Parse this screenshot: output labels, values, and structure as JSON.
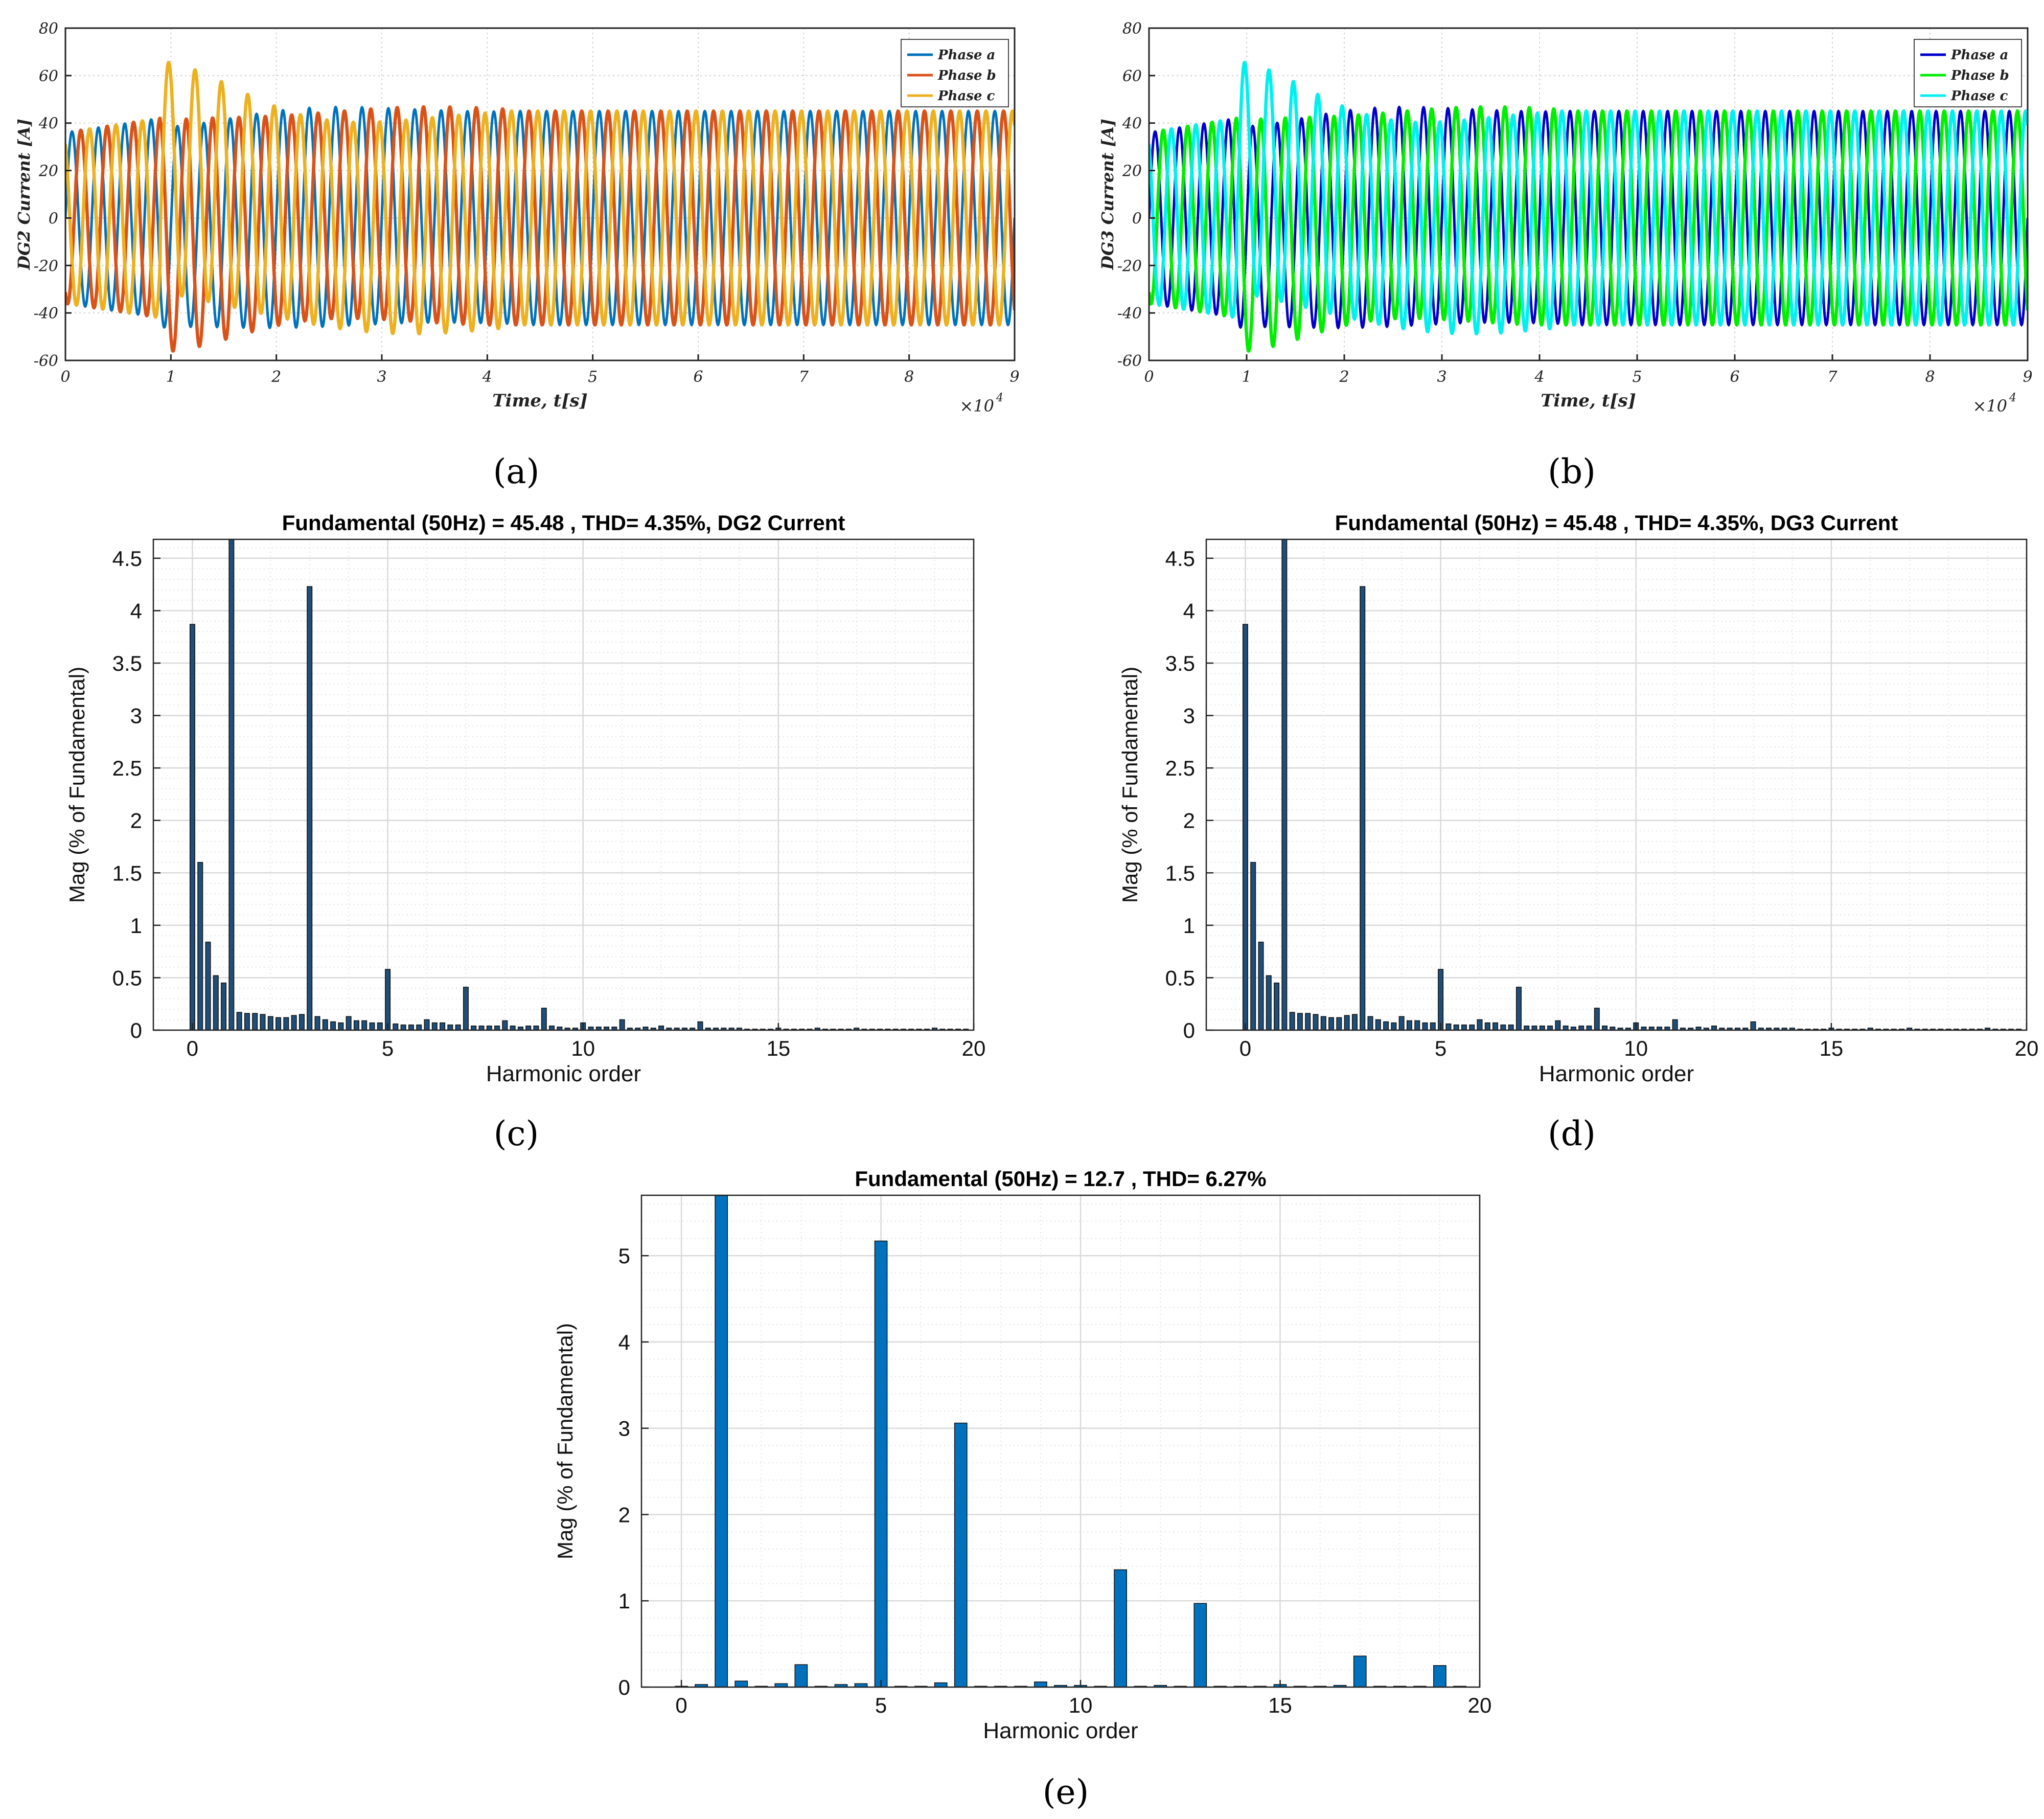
{
  "colors": {
    "phase_a_a": "#0072BD",
    "phase_b_a": "#D95319",
    "phase_c_a": "#EDB120",
    "phase_a_b": "#0000CC",
    "phase_b_b": "#00EE00",
    "phase_c_b": "#00F0F0",
    "bar_dark": "#1F4E79",
    "bar_bright": "#0072BD",
    "grid": "#d9d9d9"
  },
  "panels": {
    "a": {
      "label": "(a)"
    },
    "b": {
      "label": "(b)"
    },
    "c": {
      "label": "(c)"
    },
    "d": {
      "label": "(d)"
    },
    "e": {
      "label": "(e)"
    }
  },
  "chart_data": [
    {
      "id": "a",
      "type": "line",
      "title": "",
      "xlabel": "Time, t[s]",
      "ylabel": "DG2 Current [A]",
      "x_multiplier": "×10",
      "x_exponent": "4",
      "xlim": [
        0,
        9
      ],
      "ylim": [
        -60,
        80
      ],
      "xticks": [
        0,
        1,
        2,
        3,
        4,
        5,
        6,
        7,
        8,
        9
      ],
      "yticks": [
        -60,
        -40,
        -20,
        0,
        20,
        40,
        60,
        80
      ],
      "series": [
        {
          "name": "Phase a",
          "color_key": "phase_a_a",
          "phase_deg": 0,
          "steady_amplitude": 45
        },
        {
          "name": "Phase b",
          "color_key": "phase_b_a",
          "phase_deg": -120,
          "steady_amplitude": 45
        },
        {
          "name": "Phase c",
          "color_key": "phase_c_a",
          "phase_deg": 120,
          "steady_amplitude": 45
        }
      ],
      "cycles_per_unit": 4.0,
      "transient_peak": 62,
      "legend": "top-right"
    },
    {
      "id": "b",
      "type": "line",
      "title": "",
      "xlabel": "Time, t[s]",
      "ylabel": "DG3 Current [A]",
      "x_multiplier": "×10",
      "x_exponent": "4",
      "xlim": [
        0,
        9
      ],
      "ylim": [
        -60,
        80
      ],
      "xticks": [
        0,
        1,
        2,
        3,
        4,
        5,
        6,
        7,
        8,
        9
      ],
      "yticks": [
        -60,
        -40,
        -20,
        0,
        20,
        40,
        60,
        80
      ],
      "series": [
        {
          "name": "Phase a",
          "color_key": "phase_a_b",
          "phase_deg": 0,
          "steady_amplitude": 45
        },
        {
          "name": "Phase b",
          "color_key": "phase_b_b",
          "phase_deg": -120,
          "steady_amplitude": 45
        },
        {
          "name": "Phase c",
          "color_key": "phase_c_b",
          "phase_deg": 120,
          "steady_amplitude": 45
        }
      ],
      "cycles_per_unit": 4.0,
      "transient_peak": 62,
      "legend": "top-right"
    },
    {
      "id": "c",
      "type": "bar",
      "title": "Fundamental (50Hz) = 45.48 , THD= 4.35%, DG2 Current",
      "xlabel": "Harmonic order",
      "ylabel": "Mag (% of Fundamental)",
      "xlim": [
        -1,
        20
      ],
      "ylim": [
        0,
        4.68
      ],
      "xticks": [
        0,
        5,
        10,
        15,
        20
      ],
      "yticks": [
        0,
        0.5,
        1,
        1.5,
        2,
        2.5,
        3,
        3.5,
        4,
        4.5
      ],
      "ytick_labels": [
        "0",
        "0.5",
        "1",
        "1.5",
        "2",
        "2.5",
        "3",
        "3.5",
        "4",
        "4.5"
      ],
      "bar_color_key": "bar_dark",
      "x": [
        0,
        0.2,
        0.4,
        0.6,
        0.8,
        1.0,
        1.2,
        1.4,
        1.6,
        1.8,
        2.0,
        2.2,
        2.4,
        2.6,
        2.8,
        3.0,
        3.2,
        3.4,
        3.6,
        3.8,
        4.0,
        4.2,
        4.4,
        4.6,
        4.8,
        5.0,
        5.2,
        5.4,
        5.6,
        5.8,
        6.0,
        6.2,
        6.4,
        6.6,
        6.8,
        7.0,
        7.2,
        7.4,
        7.6,
        7.8,
        8.0,
        8.2,
        8.4,
        8.6,
        8.8,
        9.0,
        9.2,
        9.4,
        9.6,
        9.8,
        10.0,
        10.2,
        10.4,
        10.6,
        10.8,
        11.0,
        11.2,
        11.4,
        11.6,
        11.8,
        12.0,
        12.2,
        12.4,
        12.6,
        12.8,
        13.0,
        13.2,
        13.4,
        13.6,
        13.8,
        14.0,
        14.2,
        14.4,
        14.6,
        14.8,
        15.0,
        15.2,
        15.4,
        15.6,
        15.8,
        16.0,
        16.2,
        16.4,
        16.6,
        16.8,
        17.0,
        17.2,
        17.4,
        17.6,
        17.8,
        18.0,
        18.2,
        18.4,
        18.6,
        18.8,
        19.0,
        19.2,
        19.4,
        19.6,
        19.8
      ],
      "values": [
        3.87,
        1.6,
        0.84,
        0.52,
        0.45,
        4.68,
        0.17,
        0.16,
        0.16,
        0.15,
        0.13,
        0.12,
        0.12,
        0.14,
        0.15,
        4.23,
        0.13,
        0.1,
        0.08,
        0.07,
        0.13,
        0.09,
        0.09,
        0.07,
        0.07,
        0.58,
        0.06,
        0.05,
        0.05,
        0.05,
        0.1,
        0.07,
        0.07,
        0.05,
        0.05,
        0.41,
        0.04,
        0.04,
        0.04,
        0.04,
        0.09,
        0.04,
        0.03,
        0.04,
        0.04,
        0.21,
        0.04,
        0.03,
        0.02,
        0.02,
        0.07,
        0.03,
        0.03,
        0.03,
        0.03,
        0.1,
        0.02,
        0.02,
        0.03,
        0.02,
        0.04,
        0.02,
        0.02,
        0.02,
        0.02,
        0.08,
        0.02,
        0.02,
        0.02,
        0.02,
        0.02,
        0.01,
        0.01,
        0.01,
        0.01,
        0.02,
        0.01,
        0.01,
        0.01,
        0.01,
        0.02,
        0.01,
        0.01,
        0.01,
        0.01,
        0.02,
        0.01,
        0.01,
        0.01,
        0.01,
        0.01,
        0.01,
        0.01,
        0.01,
        0.01,
        0.02,
        0.01,
        0.01,
        0.01,
        0.01
      ]
    },
    {
      "id": "d",
      "type": "bar",
      "title": "Fundamental (50Hz) = 45.48 , THD= 4.35%, DG3 Current",
      "xlabel": "Harmonic order",
      "ylabel": "Mag (% of Fundamental)",
      "xlim": [
        -1,
        20
      ],
      "ylim": [
        0,
        4.68
      ],
      "xticks": [
        0,
        5,
        10,
        15,
        20
      ],
      "yticks": [
        0,
        0.5,
        1,
        1.5,
        2,
        2.5,
        3,
        3.5,
        4,
        4.5
      ],
      "ytick_labels": [
        "0",
        "0.5",
        "1",
        "1.5",
        "2",
        "2.5",
        "3",
        "3.5",
        "4",
        "4.5"
      ],
      "bar_color_key": "bar_dark",
      "x": [
        0,
        0.2,
        0.4,
        0.6,
        0.8,
        1.0,
        1.2,
        1.4,
        1.6,
        1.8,
        2.0,
        2.2,
        2.4,
        2.6,
        2.8,
        3.0,
        3.2,
        3.4,
        3.6,
        3.8,
        4.0,
        4.2,
        4.4,
        4.6,
        4.8,
        5.0,
        5.2,
        5.4,
        5.6,
        5.8,
        6.0,
        6.2,
        6.4,
        6.6,
        6.8,
        7.0,
        7.2,
        7.4,
        7.6,
        7.8,
        8.0,
        8.2,
        8.4,
        8.6,
        8.8,
        9.0,
        9.2,
        9.4,
        9.6,
        9.8,
        10.0,
        10.2,
        10.4,
        10.6,
        10.8,
        11.0,
        11.2,
        11.4,
        11.6,
        11.8,
        12.0,
        12.2,
        12.4,
        12.6,
        12.8,
        13.0,
        13.2,
        13.4,
        13.6,
        13.8,
        14.0,
        14.2,
        14.4,
        14.6,
        14.8,
        15.0,
        15.2,
        15.4,
        15.6,
        15.8,
        16.0,
        16.2,
        16.4,
        16.6,
        16.8,
        17.0,
        17.2,
        17.4,
        17.6,
        17.8,
        18.0,
        18.2,
        18.4,
        18.6,
        18.8,
        19.0,
        19.2,
        19.4,
        19.6,
        19.8
      ],
      "values": [
        3.87,
        1.6,
        0.84,
        0.52,
        0.45,
        4.68,
        0.17,
        0.16,
        0.16,
        0.15,
        0.13,
        0.12,
        0.12,
        0.14,
        0.15,
        4.23,
        0.13,
        0.1,
        0.08,
        0.07,
        0.13,
        0.09,
        0.09,
        0.07,
        0.07,
        0.58,
        0.06,
        0.05,
        0.05,
        0.05,
        0.1,
        0.07,
        0.07,
        0.05,
        0.05,
        0.41,
        0.04,
        0.04,
        0.04,
        0.04,
        0.09,
        0.04,
        0.03,
        0.04,
        0.04,
        0.21,
        0.04,
        0.03,
        0.02,
        0.02,
        0.07,
        0.03,
        0.03,
        0.03,
        0.03,
        0.1,
        0.02,
        0.02,
        0.03,
        0.02,
        0.04,
        0.02,
        0.02,
        0.02,
        0.02,
        0.08,
        0.02,
        0.02,
        0.02,
        0.02,
        0.02,
        0.01,
        0.01,
        0.01,
        0.01,
        0.02,
        0.01,
        0.01,
        0.01,
        0.01,
        0.02,
        0.01,
        0.01,
        0.01,
        0.01,
        0.02,
        0.01,
        0.01,
        0.01,
        0.01,
        0.01,
        0.01,
        0.01,
        0.01,
        0.01,
        0.02,
        0.01,
        0.01,
        0.01,
        0.01
      ]
    },
    {
      "id": "e",
      "type": "bar",
      "title": "Fundamental (50Hz) = 12.7 , THD= 6.27%",
      "xlabel": "Harmonic order",
      "ylabel": "Mag (% of Fundamental)",
      "xlim": [
        -1,
        20
      ],
      "ylim": [
        0,
        5.7
      ],
      "xticks": [
        0,
        5,
        10,
        15,
        20
      ],
      "yticks": [
        0,
        1,
        2,
        3,
        4,
        5
      ],
      "ytick_labels": [
        "0",
        "1",
        "2",
        "3",
        "4",
        "5"
      ],
      "bar_color_key": "bar_bright",
      "x": [
        0,
        0.5,
        1.0,
        1.5,
        2.0,
        2.5,
        3.0,
        3.5,
        4.0,
        4.5,
        5.0,
        5.5,
        6.0,
        6.5,
        7.0,
        7.5,
        8.0,
        8.5,
        9.0,
        9.5,
        10.0,
        10.5,
        11.0,
        11.5,
        12.0,
        12.5,
        13.0,
        13.5,
        14.0,
        14.5,
        15.0,
        15.5,
        16.0,
        16.5,
        17.0,
        17.5,
        18.0,
        18.5,
        19.0,
        19.5
      ],
      "values": [
        0.01,
        0.03,
        5.7,
        0.07,
        0.01,
        0.04,
        0.26,
        0.01,
        0.03,
        0.04,
        5.17,
        0.01,
        0.01,
        0.05,
        3.06,
        0.01,
        0.01,
        0.01,
        0.06,
        0.02,
        0.02,
        0.01,
        1.36,
        0.01,
        0.02,
        0.01,
        0.97,
        0.01,
        0.01,
        0.01,
        0.03,
        0.01,
        0.01,
        0.02,
        0.36,
        0.01,
        0.01,
        0.01,
        0.25,
        0.01
      ]
    }
  ]
}
